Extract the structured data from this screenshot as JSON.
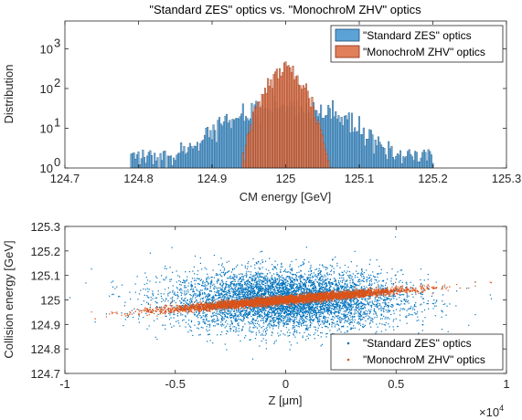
{
  "chart_data": [
    {
      "type": "bar",
      "subtype": "histogram",
      "title": "\"Standard ZES\" optics vs. \"MonochroM ZHV\" optics",
      "xlabel": "CM energy [GeV]",
      "ylabel": "Distribution",
      "xlim": [
        124.7,
        125.3
      ],
      "ylim": [
        1,
        5000
      ],
      "yscale": "log",
      "xticks": [
        124.7,
        124.8,
        124.9,
        125,
        125.1,
        125.2,
        125.3
      ],
      "xtick_labels": [
        "124.7",
        "124.8",
        "124.9",
        "125",
        "125.1",
        "125.2",
        "125.3"
      ],
      "yticks": [
        1,
        10,
        100,
        1000
      ],
      "ytick_labels": [
        "10",
        "10",
        "10",
        "10"
      ],
      "ytick_exponents": [
        "0",
        "1",
        "2",
        "3"
      ],
      "legend_position": "top-right",
      "bin_width": 0.002,
      "series": [
        {
          "name": "\"Standard ZES\" optics",
          "color": "#5ba3d6",
          "edge_color": "#1f4e79",
          "center": 125.0,
          "peak": 35,
          "sigma": 0.06,
          "range": [
            124.79,
            125.2
          ]
        },
        {
          "name": "\"MonochroM ZHV\" optics",
          "color": "#e07f5a",
          "edge_color": "#8b2e0e",
          "center": 125.0,
          "peak": 300,
          "sigma": 0.018,
          "range": [
            124.94,
            125.07
          ]
        }
      ]
    },
    {
      "type": "scatter",
      "xlabel": "Z [μm]",
      "ylabel": "Collision energy [GeV]",
      "xlim": [
        -10000,
        10000
      ],
      "ylim": [
        124.7,
        125.3
      ],
      "xticks": [
        -10000,
        -5000,
        0,
        5000,
        10000
      ],
      "xtick_labels": [
        "-1",
        "-0.5",
        "0",
        "0.5",
        "1"
      ],
      "x_multiplier_base": "×10",
      "x_multiplier_exp": "4",
      "yticks": [
        124.7,
        124.8,
        124.9,
        125,
        125.1,
        125.2,
        125.3
      ],
      "ytick_labels": [
        "124.7",
        "124.8",
        "124.9",
        "125",
        "125.1",
        "125.2",
        "125.3"
      ],
      "legend_position": "bottom-right",
      "series": [
        {
          "name": "\"Standard ZES\" optics",
          "color": "#0072bd",
          "n_points": 6000,
          "x_mean": 0,
          "x_sigma": 2600,
          "y_mean": 125.0,
          "y_sigma": 0.06,
          "correlation": 0.0
        },
        {
          "name": "\"MonochroM ZHV\" optics",
          "color": "#d95319",
          "n_points": 6000,
          "x_mean": 0,
          "x_sigma": 2600,
          "y_mean": 125.0,
          "y_sigma": 0.008,
          "slope_per_um": 7.5e-06
        }
      ]
    }
  ]
}
